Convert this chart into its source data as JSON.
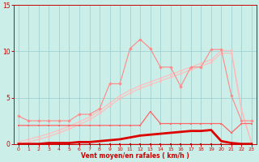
{
  "x": [
    0,
    1,
    2,
    3,
    4,
    5,
    6,
    7,
    8,
    9,
    10,
    11,
    12,
    13,
    14,
    15,
    16,
    17,
    18,
    19,
    20,
    21,
    22,
    23
  ],
  "line_jagged": [
    3.0,
    2.5,
    2.5,
    2.5,
    2.5,
    2.5,
    3.2,
    3.2,
    3.8,
    6.5,
    6.5,
    10.3,
    11.3,
    10.3,
    8.3,
    8.3,
    6.2,
    8.3,
    8.3,
    10.2,
    10.2,
    5.2,
    2.5,
    2.5
  ],
  "line_upper": [
    0.2,
    0.5,
    0.8,
    1.1,
    1.5,
    1.9,
    2.4,
    2.9,
    3.6,
    4.4,
    5.2,
    5.8,
    6.3,
    6.7,
    7.1,
    7.5,
    7.9,
    8.3,
    8.7,
    9.1,
    10.1,
    10.1,
    3.8,
    0.0
  ],
  "line_lower": [
    0.0,
    0.2,
    0.5,
    0.8,
    1.2,
    1.6,
    2.1,
    2.6,
    3.3,
    4.1,
    4.9,
    5.5,
    6.0,
    6.4,
    6.8,
    7.2,
    7.6,
    8.0,
    8.4,
    8.8,
    9.8,
    9.8,
    3.5,
    0.0
  ],
  "line_mid": [
    2.0,
    2.0,
    2.0,
    2.0,
    2.0,
    2.0,
    2.0,
    2.0,
    2.0,
    2.0,
    2.0,
    2.0,
    2.0,
    3.5,
    2.2,
    2.2,
    2.2,
    2.2,
    2.2,
    2.2,
    2.2,
    1.2,
    2.2,
    2.2
  ],
  "line_thick": [
    0.0,
    0.0,
    0.0,
    0.1,
    0.1,
    0.1,
    0.2,
    0.2,
    0.3,
    0.4,
    0.5,
    0.7,
    0.9,
    1.0,
    1.1,
    1.2,
    1.3,
    1.4,
    1.4,
    1.5,
    0.3,
    0.1,
    0.0,
    0.0
  ],
  "line_flat": [
    0.0,
    0.0,
    0.0,
    0.0,
    0.0,
    0.0,
    0.0,
    0.0,
    0.0,
    0.0,
    0.0,
    0.0,
    0.0,
    0.0,
    0.0,
    0.0,
    0.0,
    0.0,
    0.0,
    0.0,
    0.0,
    0.0,
    0.0,
    0.0
  ],
  "bg_color": "#cceee8",
  "grid_color": "#99cccc",
  "line_jagged_color": "#ff8888",
  "line_diag_color": "#ffbbbb",
  "line_mid_color": "#ff6666",
  "line_thick_color": "#dd0000",
  "line_flat_color": "#bb0000",
  "xlabel": "Vent moyen/en rafales ( km/h )",
  "xlim": [
    -0.5,
    23.5
  ],
  "ylim": [
    0,
    15
  ],
  "yticks": [
    0,
    5,
    10,
    15
  ],
  "xticks": [
    0,
    1,
    2,
    3,
    4,
    5,
    6,
    7,
    8,
    9,
    10,
    11,
    12,
    13,
    14,
    15,
    16,
    17,
    18,
    19,
    20,
    21,
    22,
    23
  ]
}
